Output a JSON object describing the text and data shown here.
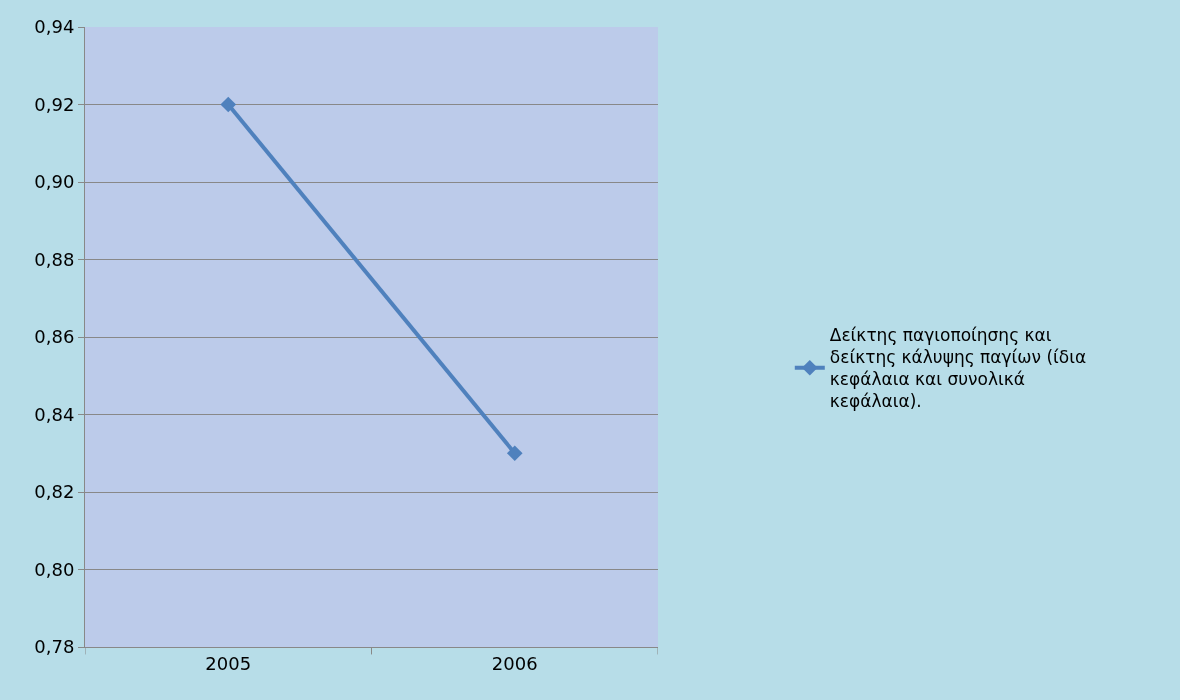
{
  "chart_data": {
    "type": "line",
    "categories": [
      "2005",
      "2006"
    ],
    "series": [
      {
        "name": "Δείκτης παγιοποίησης και δείκτης κάλυψης παγίων (ίδια κεφάλαια και συνολικά κεφάλαια).",
        "color": "#4f81bd",
        "values": [
          0.92,
          0.83
        ]
      }
    ],
    "ylim": [
      0.78,
      0.94
    ],
    "yticks": [
      {
        "value": 0.78,
        "label": "0,78"
      },
      {
        "value": 0.8,
        "label": "0,80"
      },
      {
        "value": 0.82,
        "label": "0,82"
      },
      {
        "value": 0.84,
        "label": "0,84"
      },
      {
        "value": 0.86,
        "label": "0,86"
      },
      {
        "value": 0.88,
        "label": "0,88"
      },
      {
        "value": 0.9,
        "label": "0,90"
      },
      {
        "value": 0.92,
        "label": "0,92"
      },
      {
        "value": 0.94,
        "label": "0,94"
      }
    ],
    "grid": "y",
    "legend": "right",
    "marker": "diamond",
    "line_style": "solid"
  }
}
